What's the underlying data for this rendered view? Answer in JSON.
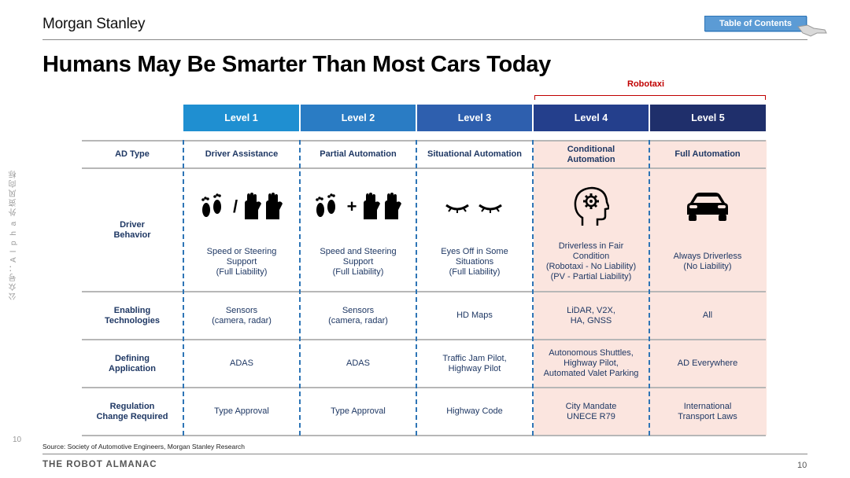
{
  "brand": "Morgan Stanley",
  "toc_label": "Table of Contents",
  "title": "Humans May Be Smarter Than Most Cars Today",
  "robotaxi_label": "Robotaxi",
  "side_watermark": "公众号：A l p h a 外资风向标",
  "page_number_left": "10",
  "levels": [
    {
      "label": "Level 1",
      "color": "#1f8fd1"
    },
    {
      "label": "Level 2",
      "color": "#2a7cc4"
    },
    {
      "label": "Level 3",
      "color": "#2e5fae"
    },
    {
      "label": "Level 4",
      "color": "#243f8c"
    },
    {
      "label": "Level 5",
      "color": "#1f2f6b"
    }
  ],
  "rows": {
    "ad_type": {
      "label": "AD Type",
      "cells": [
        "Driver Assistance",
        "Partial Automation",
        "Situational Automation",
        "Conditional\nAutomation",
        "Full Automation"
      ]
    },
    "driver_behavior": {
      "label": "Driver\nBehavior",
      "cells": [
        "Speed or Steering\nSupport\n(Full Liability)",
        "Speed and Steering\nSupport\n(Full Liability)",
        "Eyes Off in Some\nSituations\n(Full Liability)",
        "Driverless in Fair\nCondition\n(Robotaxi - No Liability)\n(PV - Partial Liability)",
        "Always Driverless\n(No Liability)"
      ]
    },
    "enabling": {
      "label": "Enabling\nTechnologies",
      "cells": [
        "Sensors\n(camera, radar)",
        "Sensors\n(camera, radar)",
        "HD Maps",
        "LiDAR, V2X,\nHA, GNSS",
        "All"
      ]
    },
    "application": {
      "label": "Defining\nApplication",
      "cells": [
        "ADAS",
        "ADAS",
        "Traffic Jam Pilot,\nHighway Pilot",
        "Autonomous Shuttles,\nHighway Pilot,\nAutomated Valet Parking",
        "AD Everywhere"
      ]
    },
    "regulation": {
      "label": "Regulation\nChange Required",
      "cells": [
        "Type Approval",
        "Type Approval",
        "Highway Code",
        "City Mandate\nUNECE R79",
        "International\nTransport Laws"
      ]
    }
  },
  "icon_separators": [
    "/",
    "+"
  ],
  "icon_names": [
    "feet-icon",
    "hands-icon",
    "closed-eyes-icon",
    "brain-gear-icon",
    "car-icon"
  ],
  "source": "Source: Society of Automotive Engineers, Morgan Stanley Research",
  "footer": "THE ROBOT ALMANAC",
  "page_number": "10"
}
